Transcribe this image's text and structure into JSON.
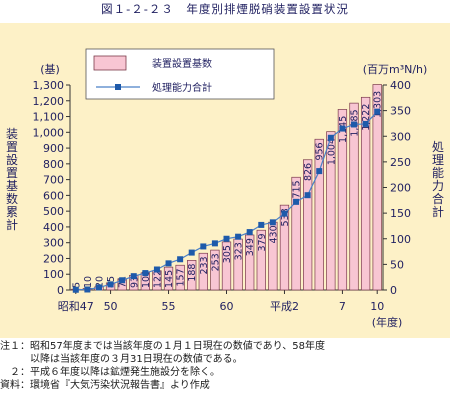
{
  "figure": {
    "title": "図１-２-２３　年度別排煙脱硝装置設置状況"
  },
  "chart_data": {
    "type": "bar+line",
    "left_unit": "(基)",
    "right_unit": "(百万m³N/h)",
    "left_axis_label": "装置設置基数累計",
    "right_axis_label": "処理能力合計",
    "x_axis_unit": "(年度)",
    "x_tick_labels": [
      "昭和47",
      "50",
      "55",
      "60",
      "平成2",
      "7",
      "10"
    ],
    "x_tick_years": [
      1972,
      1975,
      1980,
      1985,
      1990,
      1995,
      1998
    ],
    "years": [
      1972,
      1973,
      1974,
      1975,
      1976,
      1977,
      1978,
      1979,
      1980,
      1981,
      1982,
      1983,
      1984,
      1985,
      1986,
      1987,
      1988,
      1989,
      1990,
      1991,
      1992,
      1993,
      1994,
      1995,
      1996,
      1997,
      1998
    ],
    "left_ylim": [
      0,
      1300
    ],
    "left_ticks": [
      "0",
      "100",
      "200",
      "300",
      "400",
      "500",
      "600",
      "700",
      "800",
      "900",
      "1,000",
      "1,100",
      "1,200",
      "1,300"
    ],
    "right_ylim": [
      0,
      400
    ],
    "right_ticks": [
      "0",
      "50",
      "100",
      "150",
      "200",
      "250",
      "300",
      "350",
      "400"
    ],
    "series": [
      {
        "name": "装置設置基数",
        "type": "bar",
        "values": [
          5,
          10,
          20,
          45,
          71,
          93,
          109,
          122,
          145,
          157,
          188,
          233,
          253,
          305,
          323,
          349,
          379,
          430,
          538,
          715,
          826,
          956,
          1004,
          1145,
          1185,
          1222,
          1303
        ],
        "labels": [
          "5",
          "10",
          "20",
          "45",
          "71",
          "93",
          "109",
          "122",
          "145",
          "157",
          "188",
          "233",
          "253",
          "305",
          "323",
          "349",
          "379",
          "430",
          "538",
          "715",
          "826",
          "956",
          "1,004",
          "1,145",
          "1,185",
          "1,222",
          "1,303"
        ]
      },
      {
        "name": "処理能力合計",
        "type": "line",
        "values": [
          0.5,
          1,
          5,
          11,
          19,
          27,
          33,
          40,
          52,
          60,
          73,
          85,
          91,
          100,
          104,
          113,
          127,
          132,
          149,
          172,
          185,
          232,
          297,
          315,
          323,
          324,
          348
        ]
      }
    ],
    "colors": {
      "bar_fill": "#f8c6d3",
      "bar_stroke": "#7a3a4a",
      "line": "#4a80c8",
      "marker": "#1e5aaa",
      "panel_bg": "#fdf1c7",
      "text": "#1f1f60"
    }
  },
  "notes": [
    "注１：昭和57年度までは当該年度の１月１日現在の数値であり、58年度",
    "　　　以降は当該年度の３月31日現在の数値である。",
    "　２：平成６年度以降は鉱煙発生施設分を除く。",
    "資料：環境省『大気汚染状況報告書』より作成"
  ]
}
